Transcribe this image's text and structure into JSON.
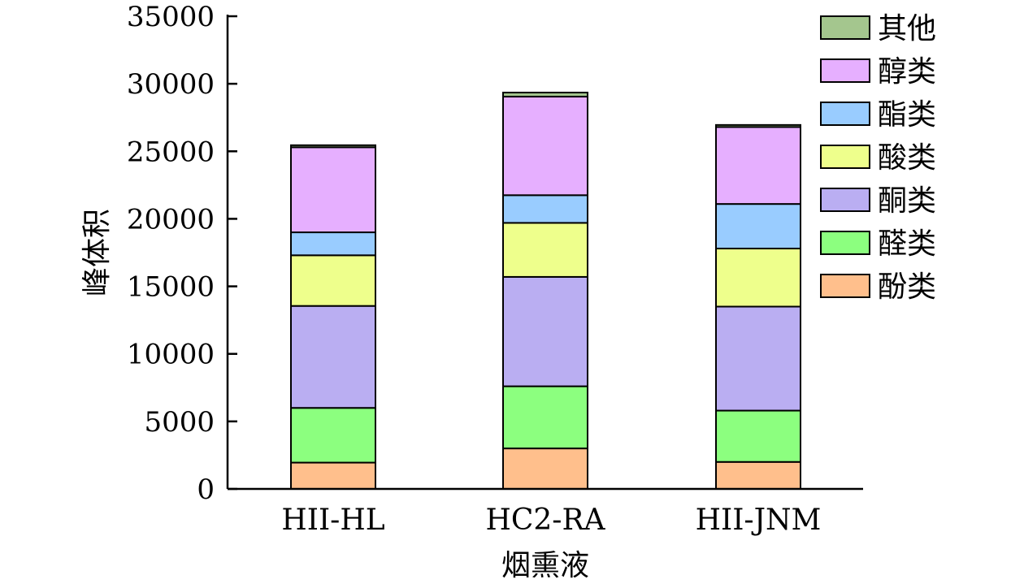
{
  "chart_data": {
    "type": "bar",
    "stacked": true,
    "title": "",
    "xlabel": "烟熏液",
    "ylabel": "峰体积",
    "ylim": [
      0,
      35000
    ],
    "yticks": [
      0,
      5000,
      10000,
      15000,
      20000,
      25000,
      30000,
      35000
    ],
    "categories": [
      "HII-HL",
      "HC2-RA",
      "HII-JNM"
    ],
    "legend_position": "top-right",
    "legend_order": [
      "其他",
      "醇类",
      "酯类",
      "酸类",
      "酮类",
      "醛类",
      "酚类"
    ],
    "series": [
      {
        "name": "酚类",
        "color": "#FFBF8C",
        "values": [
          1950,
          3000,
          2000
        ]
      },
      {
        "name": "醛类",
        "color": "#8CFF7F",
        "values": [
          4050,
          4600,
          3800
        ]
      },
      {
        "name": "酮类",
        "color": "#BAAEF2",
        "values": [
          7550,
          8100,
          7700
        ]
      },
      {
        "name": "酸类",
        "color": "#EEFF8C",
        "values": [
          3750,
          4000,
          4300
        ]
      },
      {
        "name": "酯类",
        "color": "#99CCFF",
        "values": [
          1700,
          2050,
          3300
        ]
      },
      {
        "name": "醇类",
        "color": "#E6AFFF",
        "values": [
          6300,
          7300,
          5700
        ]
      },
      {
        "name": "其他",
        "color": "#A4C68E",
        "values": [
          150,
          300,
          150
        ]
      }
    ]
  }
}
